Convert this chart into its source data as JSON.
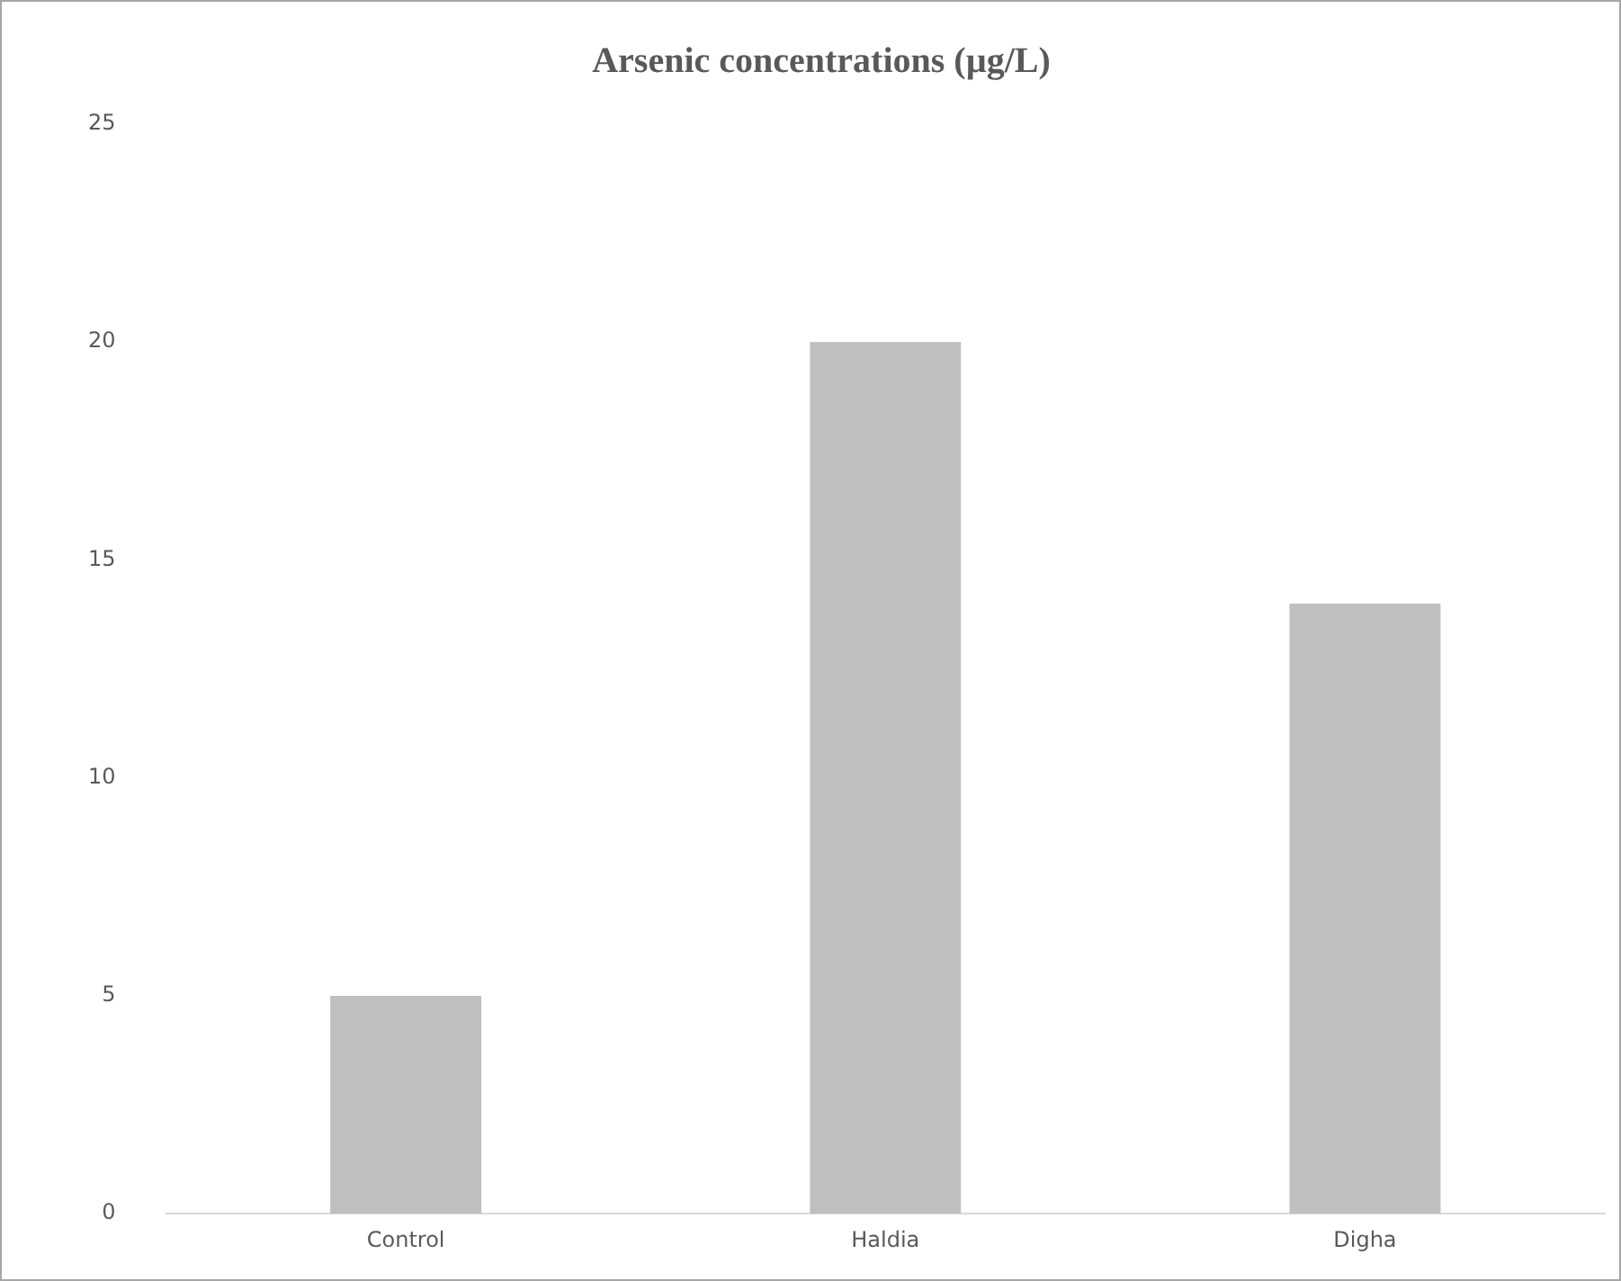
{
  "chart_data": {
    "type": "bar",
    "title": "Arsenic concentrations (µg/L)",
    "categories": [
      "Control",
      "Haldia",
      "Digha"
    ],
    "values": [
      5,
      20,
      14
    ],
    "color": "#bfbfbf",
    "ylim": [
      0,
      25
    ],
    "yticks": [
      0,
      5,
      10,
      15,
      20,
      25
    ],
    "grid": false,
    "legend": false
  }
}
